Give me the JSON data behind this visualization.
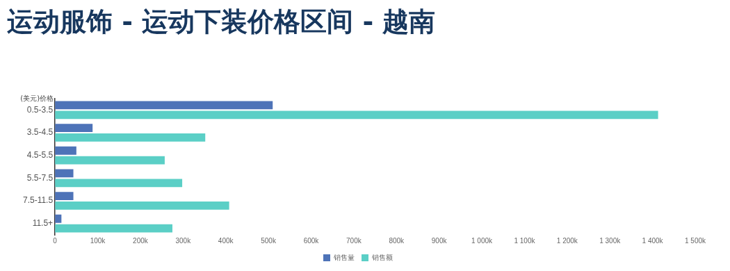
{
  "chart_data": {
    "type": "bar",
    "orientation": "horizontal",
    "title": "运动服饰 - 运动下装价格区间 - 越南",
    "ylabel": "(美元)价格",
    "categories": [
      "0.5-3.5",
      "3.5-4.5",
      "4.5-5.5",
      "5.5-7.5",
      "7.5-11.5",
      "11.5+"
    ],
    "series": [
      {
        "name": "销售量",
        "color": "#4e73b8",
        "values": [
          510000,
          88000,
          50000,
          43000,
          43000,
          15000
        ]
      },
      {
        "name": "销售额",
        "color": "#5bcfc6",
        "values": [
          1413000,
          352000,
          257000,
          298000,
          408000,
          275000
        ]
      }
    ],
    "xlim": [
      0,
      1500000
    ],
    "xticks": [
      0,
      {
        "value": 100000,
        "label": "100k"
      },
      {
        "value": 200000,
        "label": "200k"
      },
      {
        "value": 300000,
        "label": "300k"
      },
      {
        "value": 400000,
        "label": "400k"
      },
      {
        "value": 500000,
        "label": "500k"
      },
      {
        "value": 600000,
        "label": "600k"
      },
      {
        "value": 700000,
        "label": "700k"
      },
      {
        "value": 800000,
        "label": "800k"
      },
      {
        "value": 900000,
        "label": "900k"
      },
      {
        "value": 1000000,
        "label": "1 000k"
      },
      {
        "value": 1100000,
        "label": "1 100k"
      },
      {
        "value": 1200000,
        "label": "1 200k"
      },
      {
        "value": 1300000,
        "label": "1 300k"
      },
      {
        "value": 1400000,
        "label": "1 400k"
      },
      {
        "value": 1500000,
        "label": "1 500k"
      }
    ],
    "grid": false,
    "legend": "bottom"
  }
}
